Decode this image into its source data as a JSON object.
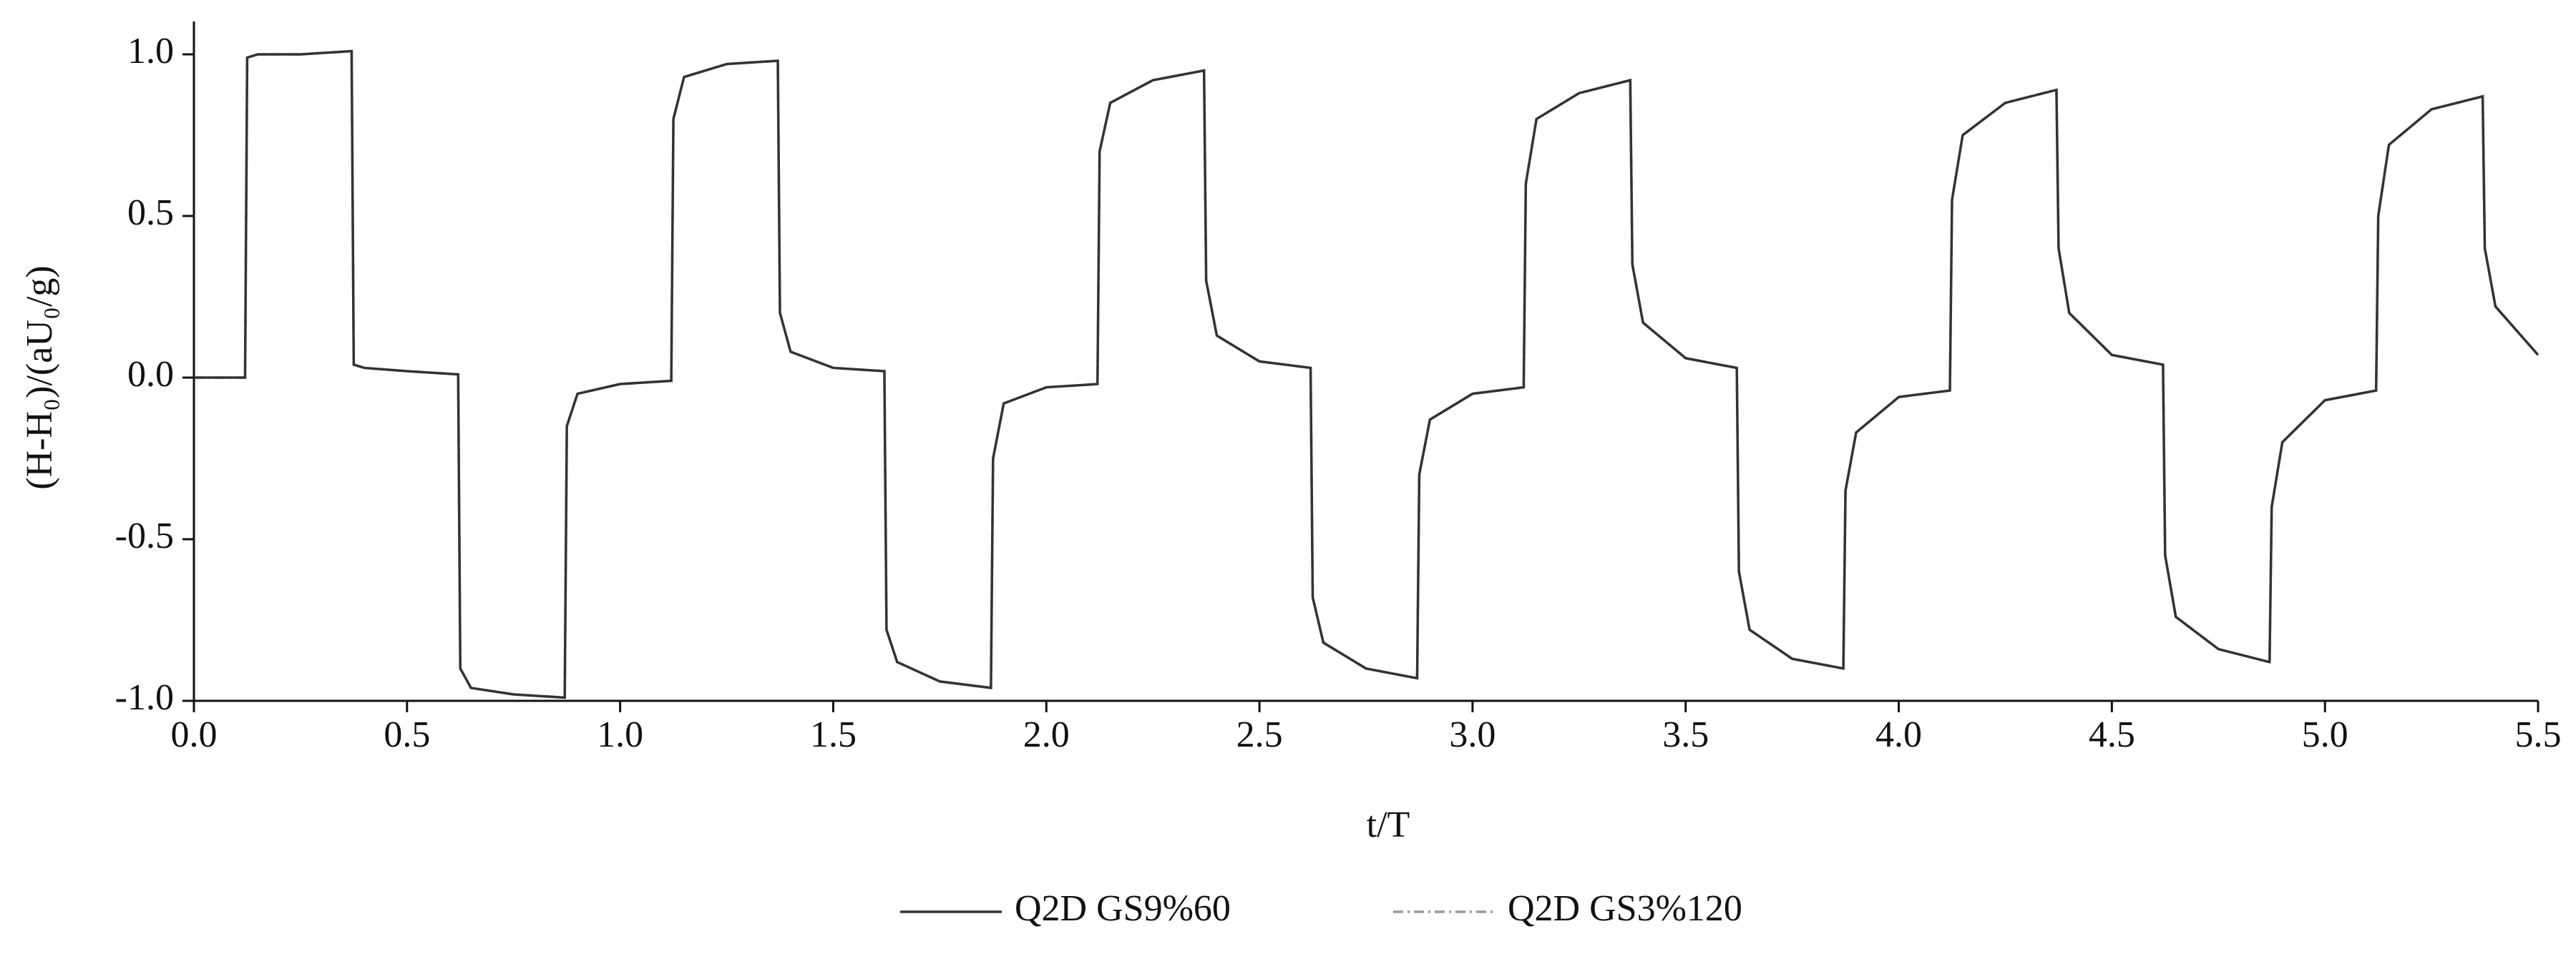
{
  "chart_data": {
    "type": "line",
    "x_label": "t/T",
    "y_label": "(H-H₀)/(aU₀/g)",
    "xlim": [
      0,
      5.5
    ],
    "ylim": [
      -1.0,
      1.0
    ],
    "xticks": [
      {
        "value": 0,
        "label": "0.0"
      },
      {
        "value": 0.5,
        "label": "0.5"
      },
      {
        "value": 1,
        "label": "1.0"
      },
      {
        "value": 1.5,
        "label": "1.5"
      },
      {
        "value": 2,
        "label": "2.0"
      },
      {
        "value": 2.5,
        "label": "2.5"
      },
      {
        "value": 3,
        "label": "3.0"
      },
      {
        "value": 3.5,
        "label": "3.5"
      },
      {
        "value": 4,
        "label": "4.0"
      },
      {
        "value": 4.5,
        "label": "4.5"
      },
      {
        "value": 5,
        "label": "5.0"
      },
      {
        "value": 5.5,
        "label": "5.5"
      }
    ],
    "yticks": [
      {
        "value": -1,
        "label": "-1.0"
      },
      {
        "value": -0.5,
        "label": "-0.5"
      },
      {
        "value": 0,
        "label": "0.0"
      },
      {
        "value": 0.5,
        "label": "0.5"
      },
      {
        "value": 1,
        "label": "1.0"
      }
    ],
    "grid": false,
    "x": [
      0,
      0.12,
      0.125,
      0.15,
      0.25,
      0.37,
      0.375,
      0.4,
      0.5,
      0.62,
      0.625,
      0.65,
      0.75,
      0.87,
      0.875,
      0.9,
      1.0,
      1.12,
      1.125,
      1.15,
      1.25,
      1.37,
      1.375,
      1.4,
      1.5,
      1.62,
      1.625,
      1.65,
      1.75,
      1.87,
      1.875,
      1.9,
      2.0,
      2.12,
      2.125,
      2.15,
      2.25,
      2.37,
      2.375,
      2.4,
      2.5,
      2.62,
      2.625,
      2.65,
      2.75,
      2.87,
      2.875,
      2.9,
      3.0,
      3.12,
      3.125,
      3.15,
      3.25,
      3.37,
      3.375,
      3.4,
      3.5,
      3.62,
      3.625,
      3.65,
      3.75,
      3.87,
      3.875,
      3.9,
      4.0,
      4.12,
      4.125,
      4.15,
      4.25,
      4.37,
      4.375,
      4.4,
      4.5,
      4.62,
      4.625,
      4.65,
      4.75,
      4.87,
      4.875,
      4.9,
      5.0,
      5.12,
      5.125,
      5.15,
      5.25,
      5.37,
      5.375,
      5.4,
      5.5
    ],
    "series": [
      {
        "name": "Q2D GS9%60",
        "color": "#333333",
        "style": "solid",
        "values": [
          0,
          0,
          0.99,
          1.0,
          1.0,
          1.01,
          0.04,
          0.03,
          0.02,
          0.01,
          -0.9,
          -0.96,
          -0.98,
          -0.99,
          -0.15,
          -0.05,
          -0.02,
          -0.01,
          0.8,
          0.93,
          0.97,
          0.98,
          0.2,
          0.08,
          0.03,
          0.02,
          -0.78,
          -0.88,
          -0.94,
          -0.96,
          -0.25,
          -0.08,
          -0.03,
          -0.02,
          0.7,
          0.85,
          0.92,
          0.95,
          0.3,
          0.13,
          0.05,
          0.03,
          -0.68,
          -0.82,
          -0.9,
          -0.93,
          -0.3,
          -0.13,
          -0.05,
          -0.03,
          0.6,
          0.8,
          0.88,
          0.92,
          0.35,
          0.17,
          0.06,
          0.03,
          -0.6,
          -0.78,
          -0.87,
          -0.9,
          -0.35,
          -0.17,
          -0.06,
          -0.04,
          0.55,
          0.75,
          0.85,
          0.89,
          0.4,
          0.2,
          0.07,
          0.04,
          -0.55,
          -0.74,
          -0.84,
          -0.88,
          -0.4,
          -0.2,
          -0.07,
          -0.04,
          0.5,
          0.72,
          0.83,
          0.87,
          0.4,
          0.22,
          0.07
        ]
      },
      {
        "name": "Q2D GS3%120",
        "color": "#9a9a9a",
        "style": "dashdot",
        "values": [
          0,
          0,
          0.99,
          1.0,
          1.0,
          1.01,
          0.04,
          0.03,
          0.02,
          0.01,
          -0.9,
          -0.96,
          -0.98,
          -0.99,
          -0.15,
          -0.05,
          -0.02,
          -0.01,
          0.8,
          0.93,
          0.97,
          0.98,
          0.2,
          0.08,
          0.03,
          0.02,
          -0.78,
          -0.88,
          -0.94,
          -0.96,
          -0.25,
          -0.08,
          -0.03,
          -0.02,
          0.7,
          0.85,
          0.92,
          0.95,
          0.3,
          0.13,
          0.05,
          0.03,
          -0.68,
          -0.82,
          -0.9,
          -0.93,
          -0.3,
          -0.13,
          -0.05,
          -0.03,
          0.6,
          0.8,
          0.88,
          0.92,
          0.35,
          0.17,
          0.06,
          0.03,
          -0.6,
          -0.78,
          -0.87,
          -0.9,
          -0.35,
          -0.17,
          -0.06,
          -0.04,
          0.55,
          0.75,
          0.85,
          0.89,
          0.4,
          0.2,
          0.07,
          0.04,
          -0.55,
          -0.74,
          -0.84,
          -0.88,
          -0.4,
          -0.2,
          -0.07,
          -0.04,
          0.5,
          0.72,
          0.83,
          0.87,
          0.4,
          0.22,
          0.07
        ]
      }
    ],
    "legend": "bottom"
  }
}
